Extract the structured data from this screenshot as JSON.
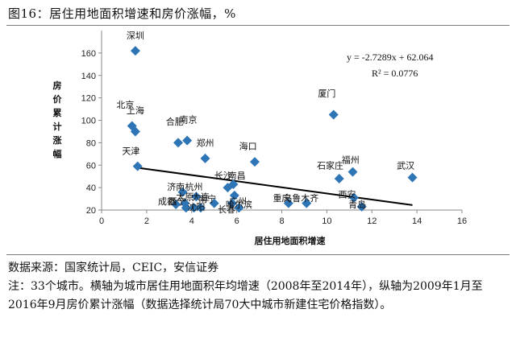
{
  "figure_title": "图16：居住用地面积增速和房价涨幅，%",
  "chart_data": {
    "type": "scatter",
    "xlabel": "居住用地面积增速",
    "ylabel": "房价累计涨幅",
    "xlim": [
      0,
      16
    ],
    "ylim": [
      20,
      180
    ],
    "xticks": [
      0,
      2,
      4,
      6,
      8,
      10,
      12,
      14,
      16
    ],
    "yticks": [
      20,
      40,
      60,
      80,
      100,
      120,
      140,
      160
    ],
    "marker_color": "#2e75b6",
    "trendline": {
      "slope": -2.7289,
      "intercept": 62.064,
      "x_range": [
        1.5,
        13.8
      ],
      "color": "#000000"
    },
    "equation": "y = -2.7289x + 62.064",
    "r2_text": "R² = 0.0776",
    "points": [
      {
        "city": "深圳",
        "x": 1.5,
        "y": 162
      },
      {
        "city": "北京",
        "x": 1.35,
        "y": 95
      },
      {
        "city": "上海",
        "x": 1.5,
        "y": 90
      },
      {
        "city": "天津",
        "x": 1.6,
        "y": 59
      },
      {
        "city": "合肥",
        "x": 3.4,
        "y": 80
      },
      {
        "city": "南京",
        "x": 3.8,
        "y": 82
      },
      {
        "city": "郑州",
        "x": 4.6,
        "y": 66
      },
      {
        "city": "济南",
        "x": 3.6,
        "y": 36
      },
      {
        "city": "杭州",
        "x": 4.2,
        "y": 32
      },
      {
        "city": "成都",
        "x": 3.3,
        "y": 25
      },
      {
        "city": "太原",
        "x": 3.7,
        "y": 26
      },
      {
        "city": "沈阳",
        "x": 4.1,
        "y": 22
      },
      {
        "city": "西宁",
        "x": 3.75,
        "y": 22
      },
      {
        "city": "大连",
        "x": 4.4,
        "y": 22
      },
      {
        "city": "南宁",
        "x": 5.0,
        "y": 26
      },
      {
        "city": "长沙",
        "x": 5.6,
        "y": 40
      },
      {
        "city": "南昌",
        "x": 5.85,
        "y": 43
      },
      {
        "city": "广州",
        "x": 5.9,
        "y": 33
      },
      {
        "city": "长春",
        "x": 5.8,
        "y": 26
      },
      {
        "city": "哈尔滨",
        "x": 6.1,
        "y": 22
      },
      {
        "city": "海口",
        "x": 6.8,
        "y": 63
      },
      {
        "city": "重庆",
        "x": 8.3,
        "y": 26
      },
      {
        "city": "乌鲁木齐",
        "x": 9.1,
        "y": 26
      },
      {
        "city": "厦门",
        "x": 10.3,
        "y": 105
      },
      {
        "city": "石家庄",
        "x": 10.55,
        "y": 48
      },
      {
        "city": "福州",
        "x": 11.15,
        "y": 54
      },
      {
        "city": "西安",
        "x": 11.2,
        "y": 31
      },
      {
        "city": "青岛",
        "x": 11.55,
        "y": 23
      },
      {
        "city": "武汉",
        "x": 13.8,
        "y": 49
      }
    ],
    "labels": [
      {
        "text": "深圳",
        "x": 1.5,
        "y": 173
      },
      {
        "text": "北京",
        "x": 1.05,
        "y": 111
      },
      {
        "text": "上海",
        "x": 1.5,
        "y": 106
      },
      {
        "text": "天津",
        "x": 1.3,
        "y": 70
      },
      {
        "text": "合肥",
        "x": 3.25,
        "y": 96
      },
      {
        "text": "南京",
        "x": 3.85,
        "y": 98
      },
      {
        "text": "郑州",
        "x": 4.6,
        "y": 77
      },
      {
        "text": "海口",
        "x": 6.5,
        "y": 74
      },
      {
        "text": "厦门",
        "x": 10.0,
        "y": 121
      },
      {
        "text": "石家庄",
        "x": 10.15,
        "y": 57
      },
      {
        "text": "福州",
        "x": 11.05,
        "y": 62
      },
      {
        "text": "武汉",
        "x": 13.5,
        "y": 57
      },
      {
        "text": "长沙",
        "x": 5.4,
        "y": 48
      },
      {
        "text": "南昌",
        "x": 6.0,
        "y": 48
      },
      {
        "text": "济南",
        "x": 3.3,
        "y": 38
      },
      {
        "text": "杭州",
        "x": 4.1,
        "y": 38
      },
      {
        "text": "成都",
        "x": 2.9,
        "y": 25
      },
      {
        "text": "西宁",
        "x": 3.35,
        "y": 25
      },
      {
        "text": "太原",
        "x": 3.7,
        "y": 29
      },
      {
        "text": "沈阳",
        "x": 4.2,
        "y": 20
      },
      {
        "text": "南宁",
        "x": 4.7,
        "y": 27
      },
      {
        "text": "大连",
        "x": 4.4,
        "y": 29
      },
      {
        "text": "广州",
        "x": 6.05,
        "y": 25
      },
      {
        "text": "长春",
        "x": 5.55,
        "y": 18
      },
      {
        "text": "哈尔滨",
        "x": 6.1,
        "y": 22
      },
      {
        "text": "重庆",
        "x": 8.0,
        "y": 28
      },
      {
        "text": "乌鲁木齐",
        "x": 8.85,
        "y": 28
      },
      {
        "text": "西安",
        "x": 10.9,
        "y": 31
      },
      {
        "text": "青岛",
        "x": 11.35,
        "y": 22
      }
    ]
  },
  "source": "数据来源：国家统计局，CEIC，安信证券",
  "note": "注：33个城市。横轴为城市居住用地面积年均增速（2008年至2014年），纵轴为2009年1月至2016年9月房价累计涨幅（数据选择统计局70大中城市新建住宅价格指数）。"
}
